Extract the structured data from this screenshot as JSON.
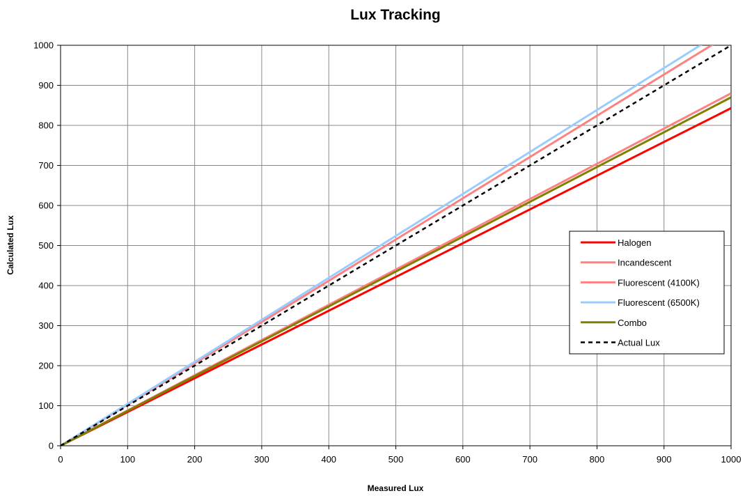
{
  "chart_data": {
    "type": "line",
    "title": "Lux Tracking",
    "xlabel": "Measured Lux",
    "ylabel": "Calculated Lux",
    "xlim": [
      0,
      1000
    ],
    "ylim": [
      0,
      1000
    ],
    "xticks": [
      0,
      100,
      200,
      300,
      400,
      500,
      600,
      700,
      800,
      900,
      1000
    ],
    "yticks": [
      0,
      100,
      200,
      300,
      400,
      500,
      600,
      700,
      800,
      900,
      1000
    ],
    "grid": true,
    "legend_position": "right",
    "series": [
      {
        "name": "Halogen",
        "color": "#ff0000",
        "dash": false,
        "x": [
          0,
          1000
        ],
        "y": [
          0,
          843
        ]
      },
      {
        "name": "Incandescent",
        "color": "#ff8080",
        "dash": false,
        "x": [
          0,
          1000
        ],
        "y": [
          0,
          880
        ]
      },
      {
        "name": "Fluorescent (4100K)",
        "color": "#ff8080",
        "dash": false,
        "x": [
          0,
          1000
        ],
        "y": [
          0,
          1030
        ]
      },
      {
        "name": "Fluorescent (6500K)",
        "color": "#99ccff",
        "dash": false,
        "x": [
          0,
          1000
        ],
        "y": [
          0,
          1048
        ]
      },
      {
        "name": "Combo",
        "color": "#808000",
        "dash": false,
        "x": [
          0,
          1000
        ],
        "y": [
          0,
          870
        ]
      },
      {
        "name": "Actual Lux",
        "color": "#000000",
        "dash": true,
        "x": [
          0,
          1000
        ],
        "y": [
          0,
          1000
        ]
      }
    ]
  }
}
